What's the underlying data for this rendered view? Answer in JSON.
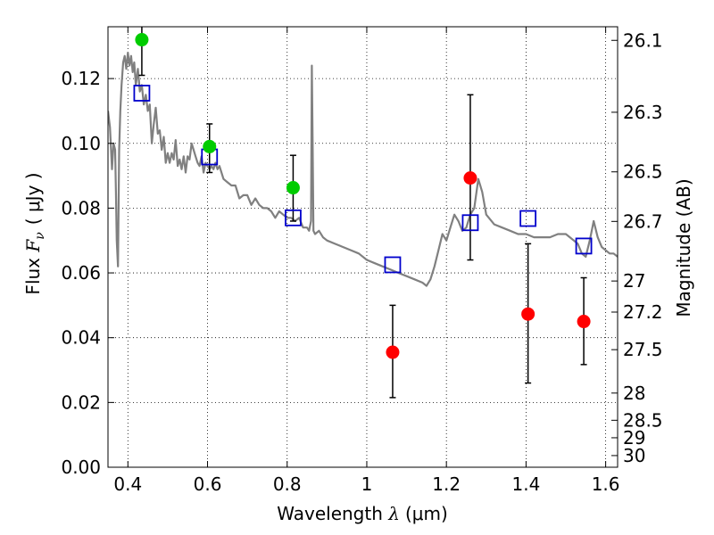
{
  "chart_data": {
    "type": "scatter",
    "xlabel": "Wavelength  λ (μm)",
    "ylabel": "Flux  F_ν  ( μJy )",
    "ylabel_parts": {
      "prefix": "Flux  ",
      "symbol": "F",
      "subscript": "ν",
      "unit": "( μJy )"
    },
    "xlabel_parts": {
      "prefix": "Wavelength  ",
      "symbol": "λ",
      "unit": "(μm)"
    },
    "y2label": "Magnitude (AB)",
    "xlim": [
      0.35,
      1.63
    ],
    "ylim": [
      0.0,
      0.136
    ],
    "grid": true,
    "x_ticks": [
      {
        "value": 0.4,
        "label": "0.4"
      },
      {
        "value": 0.6,
        "label": "0.6"
      },
      {
        "value": 0.8,
        "label": "0.8"
      },
      {
        "value": 1.0,
        "label": "1"
      },
      {
        "value": 1.2,
        "label": "1.2"
      },
      {
        "value": 1.4,
        "label": "1.4"
      },
      {
        "value": 1.6,
        "label": "1.6"
      }
    ],
    "y_ticks": [
      {
        "value": 0.0,
        "label": "0.00"
      },
      {
        "value": 0.02,
        "label": "0.02"
      },
      {
        "value": 0.04,
        "label": "0.04"
      },
      {
        "value": 0.06,
        "label": "0.06"
      },
      {
        "value": 0.08,
        "label": "0.08"
      },
      {
        "value": 0.1,
        "label": "0.10"
      },
      {
        "value": 0.12,
        "label": "0.12"
      }
    ],
    "y2_ticks": [
      {
        "flux": 0.1318,
        "label": "26.1"
      },
      {
        "flux": 0.1096,
        "label": "26.3"
      },
      {
        "flux": 0.0912,
        "label": "26.5"
      },
      {
        "flux": 0.0759,
        "label": "26.7"
      },
      {
        "flux": 0.0575,
        "label": "27"
      },
      {
        "flux": 0.0479,
        "label": "27.2"
      },
      {
        "flux": 0.0363,
        "label": "27.5"
      },
      {
        "flux": 0.0229,
        "label": "28"
      },
      {
        "flux": 0.0145,
        "label": "28.5"
      },
      {
        "flux": 0.0091,
        "label": "29"
      },
      {
        "flux": 0.0036,
        "label": "30"
      }
    ],
    "series": [
      {
        "name": "model_spectrum",
        "kind": "line",
        "color": "#808080",
        "x": [
          0.35,
          0.355,
          0.36,
          0.364,
          0.368,
          0.37,
          0.372,
          0.375,
          0.378,
          0.381,
          0.384,
          0.388,
          0.392,
          0.396,
          0.4,
          0.404,
          0.408,
          0.412,
          0.416,
          0.42,
          0.425,
          0.43,
          0.435,
          0.44,
          0.445,
          0.45,
          0.455,
          0.46,
          0.465,
          0.47,
          0.475,
          0.48,
          0.485,
          0.49,
          0.495,
          0.5,
          0.505,
          0.51,
          0.515,
          0.52,
          0.525,
          0.53,
          0.535,
          0.54,
          0.545,
          0.55,
          0.555,
          0.56,
          0.565,
          0.57,
          0.575,
          0.58,
          0.585,
          0.59,
          0.595,
          0.6,
          0.605,
          0.61,
          0.615,
          0.62,
          0.625,
          0.63,
          0.64,
          0.65,
          0.66,
          0.67,
          0.68,
          0.69,
          0.7,
          0.71,
          0.72,
          0.73,
          0.74,
          0.75,
          0.76,
          0.77,
          0.78,
          0.79,
          0.8,
          0.81,
          0.82,
          0.83,
          0.84,
          0.85,
          0.855,
          0.86,
          0.862,
          0.864,
          0.866,
          0.87,
          0.88,
          0.89,
          0.9,
          0.92,
          0.94,
          0.96,
          0.98,
          1.0,
          1.02,
          1.04,
          1.06,
          1.08,
          1.1,
          1.12,
          1.14,
          1.15,
          1.16,
          1.17,
          1.18,
          1.19,
          1.2,
          1.21,
          1.22,
          1.23,
          1.24,
          1.25,
          1.26,
          1.27,
          1.28,
          1.29,
          1.3,
          1.32,
          1.34,
          1.36,
          1.38,
          1.4,
          1.42,
          1.44,
          1.46,
          1.48,
          1.5,
          1.51,
          1.52,
          1.53,
          1.54,
          1.55,
          1.56,
          1.57,
          1.58,
          1.59,
          1.6,
          1.61,
          1.62,
          1.63
        ],
        "y": [
          0.11,
          0.105,
          0.092,
          0.1,
          0.098,
          0.085,
          0.07,
          0.062,
          0.098,
          0.11,
          0.118,
          0.125,
          0.127,
          0.123,
          0.128,
          0.124,
          0.127,
          0.122,
          0.125,
          0.118,
          0.123,
          0.116,
          0.118,
          0.112,
          0.115,
          0.11,
          0.112,
          0.1,
          0.106,
          0.111,
          0.103,
          0.104,
          0.098,
          0.102,
          0.094,
          0.097,
          0.094,
          0.097,
          0.095,
          0.101,
          0.093,
          0.095,
          0.092,
          0.096,
          0.091,
          0.096,
          0.095,
          0.1,
          0.098,
          0.096,
          0.094,
          0.093,
          0.096,
          0.091,
          0.094,
          0.093,
          0.092,
          0.093,
          0.092,
          0.094,
          0.092,
          0.093,
          0.089,
          0.088,
          0.087,
          0.087,
          0.083,
          0.084,
          0.084,
          0.081,
          0.083,
          0.081,
          0.08,
          0.08,
          0.079,
          0.077,
          0.079,
          0.078,
          0.077,
          0.077,
          0.076,
          0.077,
          0.074,
          0.074,
          0.073,
          0.076,
          0.124,
          0.1,
          0.073,
          0.072,
          0.073,
          0.071,
          0.07,
          0.069,
          0.068,
          0.067,
          0.066,
          0.064,
          0.063,
          0.062,
          0.061,
          0.06,
          0.059,
          0.058,
          0.057,
          0.056,
          0.058,
          0.062,
          0.067,
          0.072,
          0.07,
          0.074,
          0.078,
          0.076,
          0.073,
          0.074,
          0.078,
          0.08,
          0.089,
          0.085,
          0.078,
          0.075,
          0.074,
          0.073,
          0.072,
          0.072,
          0.071,
          0.071,
          0.071,
          0.072,
          0.072,
          0.071,
          0.07,
          0.069,
          0.066,
          0.065,
          0.07,
          0.076,
          0.071,
          0.068,
          0.067,
          0.066,
          0.066,
          0.065
        ]
      },
      {
        "name": "model_photometry",
        "kind": "marker",
        "marker": "open-square",
        "color": "#0000cc",
        "x": [
          0.435,
          0.605,
          0.815,
          1.065,
          1.26,
          1.405,
          1.545
        ],
        "y": [
          0.1155,
          0.0958,
          0.077,
          0.0625,
          0.0755,
          0.0768,
          0.0683
        ]
      },
      {
        "name": "observed_flux_green",
        "kind": "marker-errorbar",
        "marker": "filled-circle",
        "color": "#00cc00",
        "x": [
          0.435,
          0.605,
          0.815
        ],
        "y": [
          0.132,
          0.099,
          0.0863
        ],
        "yerr_low": [
          0.011,
          0.008,
          0.0103
        ],
        "yerr_high": [
          0.012,
          0.007,
          0.01
        ]
      },
      {
        "name": "observed_flux_red",
        "kind": "marker-errorbar",
        "marker": "filled-circle",
        "color": "#ff0000",
        "x": [
          1.065,
          1.26,
          1.405,
          1.545
        ],
        "y": [
          0.0355,
          0.0893,
          0.0473,
          0.045
        ],
        "yerr_low": [
          0.014,
          0.0253,
          0.0213,
          0.0133
        ],
        "yerr_high": [
          0.0145,
          0.0257,
          0.0217,
          0.0135
        ]
      }
    ]
  }
}
